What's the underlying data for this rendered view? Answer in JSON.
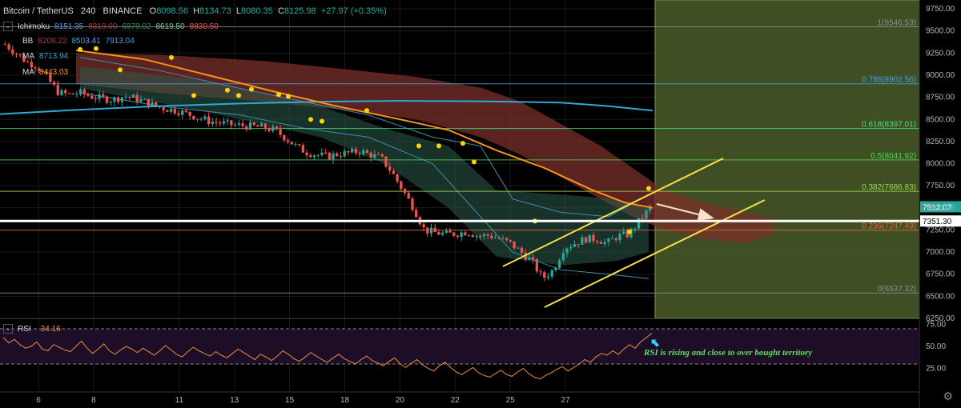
{
  "header": {
    "symbol": "Bitcoin / TetherUS",
    "interval": "240",
    "exchange": "BINANCE",
    "o_label": "O",
    "o": "8098.56",
    "h_label": "H",
    "h": "8134.73",
    "l_label": "L",
    "l": "8080.35",
    "c_label": "C",
    "c": "8125.98",
    "change": "+27.97 (+0.35%)"
  },
  "indicators": {
    "ichimoku": {
      "name": "Ichimoku",
      "v1": "8151.35",
      "v2": "8319.00",
      "v3": "6879.02",
      "v4": "8619.50",
      "v5": "8830.50"
    },
    "bb": {
      "name": "BB",
      "v1": "8208.22",
      "v2": "8503.41",
      "v3": "7913.04"
    },
    "ma1": {
      "name": "MA",
      "v": "8713.94"
    },
    "ma2": {
      "name": "MA",
      "v": "8443.03"
    },
    "rsi": {
      "name": "RSI",
      "v": "34.16"
    }
  },
  "annotation": "RSI is rising and close to over bought territory",
  "colors": {
    "background": "#000000",
    "grid": "#1a1a1a",
    "up": "#26a69a",
    "down": "#ef5350",
    "ma_orange": "#f7931a",
    "ma_blue": "#2ea9d4",
    "bb": "#3d8fb0",
    "cloud_red": "#7a2f2a",
    "cloud_green": "#2c5a4a",
    "fib_box": "#4a5d2a",
    "channel": "#f5e04a",
    "arrow": "#ffe1c8",
    "rsi_line": "#f08c3c",
    "rsi_bg": "#1d0d26",
    "dot": "#ffd700",
    "annotation": "#5ee05e",
    "annotation_arrow": "#33d6ff"
  },
  "chart_data": {
    "type": "candlestick",
    "title": "Bitcoin / TetherUS 240 BINANCE",
    "x_ticks": [
      "6",
      "8",
      "11",
      "13",
      "15",
      "18",
      "20",
      "22",
      "25",
      "27"
    ],
    "y_ticks": [
      "9750.00",
      "9500.00",
      "9250.00",
      "9000.00",
      "8750.00",
      "8500.00",
      "8250.00",
      "8000.00",
      "7750.00",
      "7500.00",
      "7250.00",
      "7000.00",
      "6750.00",
      "6500.00",
      "6250.00"
    ],
    "ylim": [
      6250,
      9850
    ],
    "last_price_label": "7512.07",
    "crosshair_label": "7351.30",
    "crosshair_price": 7351.3,
    "fib_levels": [
      {
        "label": "1(9546.53)",
        "price": 9546.53,
        "color": "#8a8f98"
      },
      {
        "label": "0.786(8902.56)",
        "price": 8902.56,
        "color": "#4a9fe3"
      },
      {
        "label": "0.618(8397.01)",
        "price": 8397.01,
        "color": "#4cd97a"
      },
      {
        "label": "0.5(8041.92)",
        "price": 8041.92,
        "color": "#4cd94c"
      },
      {
        "label": "0.382(7686.83)",
        "price": 7686.83,
        "color": "#9cd94c"
      },
      {
        "label": "0.236(7247.49)",
        "price": 7247.49,
        "color": "#e0673a"
      },
      {
        "label": "0(6537.32)",
        "price": 6537.32,
        "color": "#8a8f98"
      }
    ],
    "rsi": {
      "ylim": [
        0,
        80
      ],
      "ticks": [
        "75.00",
        "50.00",
        "25.00"
      ],
      "upper": 70,
      "lower": 30,
      "values": [
        60,
        54,
        58,
        52,
        48,
        50,
        55,
        47,
        45,
        52,
        49,
        46,
        44,
        50,
        56,
        48,
        42,
        47,
        53,
        45,
        41,
        46,
        50,
        47,
        43,
        48,
        44,
        40,
        45,
        51,
        46,
        41,
        38,
        44,
        49,
        45,
        42,
        39,
        44,
        40,
        37,
        42,
        47,
        43,
        39,
        35,
        41,
        38,
        34,
        39,
        45,
        41,
        36,
        33,
        38,
        43,
        39,
        35,
        32,
        37,
        41,
        36,
        33,
        30,
        35,
        39,
        34,
        31,
        28,
        33,
        37,
        30,
        26,
        31,
        35,
        29,
        25,
        22,
        28,
        32,
        26,
        21,
        18,
        22,
        26,
        20,
        17,
        15,
        19,
        23,
        18,
        16,
        21,
        25,
        19,
        15,
        13,
        17,
        20,
        24,
        27,
        22,
        26,
        30,
        35,
        32,
        38,
        42,
        40,
        45,
        41,
        47,
        52,
        48,
        55,
        60,
        65
      ]
    }
  }
}
